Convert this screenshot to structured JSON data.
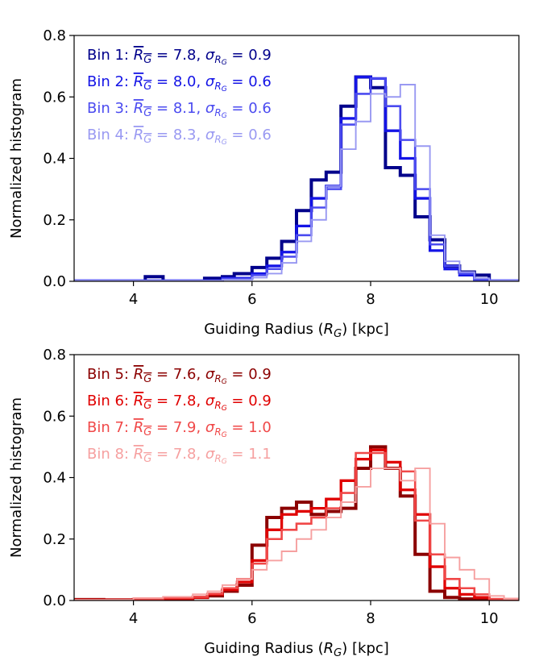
{
  "chart_data": [
    {
      "type": "histogram-step",
      "xlabel": "Guiding Radius (R_G) [kpc]",
      "xlabel_parts": {
        "pre": "Guiding Radius (",
        "sym": "R",
        "sub": "G",
        "post": ") [kpc]"
      },
      "ylabel": "Normalized histogram",
      "xlim": [
        3.0,
        10.5
      ],
      "ylim": [
        0.0,
        0.8
      ],
      "xticks": [
        4,
        6,
        8,
        10
      ],
      "xtick_labels": [
        "4",
        "6",
        "8",
        "10"
      ],
      "yticks": [
        0.0,
        0.2,
        0.4,
        0.6,
        0.8
      ],
      "ytick_labels": [
        "0.0",
        "0.2",
        "0.4",
        "0.6",
        "0.8"
      ],
      "legend_location": "top-left",
      "series": [
        {
          "name": "Bin 1",
          "mean_text": "7.8",
          "sigma_text": "0.9",
          "color": "#00008b",
          "edges": [
            3.0,
            4.2,
            4.5,
            5.2,
            5.5,
            5.7,
            6.0,
            6.25,
            6.5,
            6.75,
            7.0,
            7.25,
            7.5,
            7.75,
            8.0,
            8.25,
            8.5,
            8.75,
            9.0,
            9.25,
            9.5,
            9.75,
            10.0,
            10.25,
            10.5
          ],
          "values": [
            0.0,
            0.015,
            0.0,
            0.01,
            0.015,
            0.025,
            0.045,
            0.075,
            0.13,
            0.23,
            0.33,
            0.355,
            0.57,
            0.665,
            0.63,
            0.37,
            0.345,
            0.21,
            0.135,
            0.05,
            0.03,
            0.02,
            0.0,
            0.0
          ]
        },
        {
          "name": "Bin 2",
          "mean_text": "8.0",
          "sigma_text": "0.6",
          "color": "#1414e6",
          "edges": [
            3.0,
            5.5,
            6.0,
            6.25,
            6.5,
            6.75,
            7.0,
            7.25,
            7.5,
            7.75,
            8.0,
            8.25,
            8.5,
            8.75,
            9.0,
            9.25,
            9.5,
            9.75,
            10.0,
            10.5
          ],
          "values": [
            0.002,
            0.01,
            0.025,
            0.05,
            0.095,
            0.18,
            0.27,
            0.31,
            0.53,
            0.665,
            0.66,
            0.49,
            0.4,
            0.27,
            0.1,
            0.04,
            0.02,
            0.005,
            0.002
          ]
        },
        {
          "name": "Bin 3",
          "mean_text": "8.1",
          "sigma_text": "0.6",
          "color": "#4b4bf0",
          "edges": [
            3.0,
            5.5,
            6.0,
            6.25,
            6.5,
            6.75,
            7.0,
            7.25,
            7.5,
            7.75,
            8.0,
            8.25,
            8.5,
            8.75,
            9.0,
            9.25,
            9.5,
            9.75,
            10.0,
            10.5
          ],
          "values": [
            0.002,
            0.008,
            0.02,
            0.04,
            0.08,
            0.15,
            0.24,
            0.3,
            0.51,
            0.61,
            0.66,
            0.57,
            0.46,
            0.3,
            0.12,
            0.05,
            0.025,
            0.005,
            0.002
          ]
        },
        {
          "name": "Bin 4",
          "mean_text": "8.3",
          "sigma_text": "0.6",
          "color": "#9999f2",
          "edges": [
            3.0,
            5.5,
            6.0,
            6.25,
            6.5,
            6.75,
            7.0,
            7.25,
            7.5,
            7.75,
            8.0,
            8.25,
            8.5,
            8.75,
            9.0,
            9.25,
            9.5,
            9.75,
            10.0,
            10.5
          ],
          "values": [
            0.002,
            0.005,
            0.012,
            0.025,
            0.06,
            0.13,
            0.2,
            0.31,
            0.43,
            0.52,
            0.61,
            0.6,
            0.64,
            0.44,
            0.15,
            0.065,
            0.03,
            0.01,
            0.002
          ]
        }
      ]
    },
    {
      "type": "histogram-step",
      "xlabel": "Guiding Radius (R_G) [kpc]",
      "xlabel_parts": {
        "pre": "Guiding Radius (",
        "sym": "R",
        "sub": "G",
        "post": ") [kpc]"
      },
      "ylabel": "Normalized histogram",
      "xlim": [
        3.0,
        10.5
      ],
      "ylim": [
        0.0,
        0.8
      ],
      "xticks": [
        4,
        6,
        8,
        10
      ],
      "xtick_labels": [
        "4",
        "6",
        "8",
        "10"
      ],
      "yticks": [
        0.0,
        0.2,
        0.4,
        0.6,
        0.8
      ],
      "ytick_labels": [
        "0.0",
        "0.2",
        "0.4",
        "0.6",
        "0.8"
      ],
      "legend_location": "top-left",
      "series": [
        {
          "name": "Bin 5",
          "mean_text": "7.6",
          "sigma_text": "0.9",
          "color": "#8b0000",
          "edges": [
            3.0,
            3.5,
            4.0,
            4.5,
            5.0,
            5.25,
            5.5,
            5.75,
            6.0,
            6.25,
            6.5,
            6.75,
            7.0,
            7.25,
            7.5,
            7.75,
            8.0,
            8.25,
            8.5,
            8.75,
            9.0,
            9.25,
            9.5,
            9.75,
            10.0,
            10.5
          ],
          "values": [
            0.003,
            0.002,
            0.003,
            0.005,
            0.01,
            0.015,
            0.03,
            0.05,
            0.18,
            0.27,
            0.3,
            0.32,
            0.28,
            0.29,
            0.3,
            0.43,
            0.5,
            0.43,
            0.34,
            0.15,
            0.03,
            0.01,
            0.005,
            0.002,
            0.001
          ]
        },
        {
          "name": "Bin 6",
          "mean_text": "7.8",
          "sigma_text": "0.9",
          "color": "#e00000",
          "edges": [
            3.0,
            4.0,
            4.5,
            5.0,
            5.25,
            5.5,
            5.75,
            6.0,
            6.25,
            6.5,
            6.75,
            7.0,
            7.25,
            7.5,
            7.75,
            8.0,
            8.25,
            8.5,
            8.75,
            9.0,
            9.25,
            9.5,
            9.75,
            10.0,
            10.5
          ],
          "values": [
            0.002,
            0.003,
            0.006,
            0.01,
            0.02,
            0.035,
            0.06,
            0.13,
            0.23,
            0.28,
            0.29,
            0.3,
            0.33,
            0.39,
            0.46,
            0.49,
            0.45,
            0.36,
            0.28,
            0.11,
            0.04,
            0.02,
            0.01,
            0.003
          ]
        },
        {
          "name": "Bin 7",
          "mean_text": "7.9",
          "sigma_text": "1.0",
          "color": "#f04848",
          "edges": [
            3.0,
            4.0,
            4.5,
            5.0,
            5.25,
            5.5,
            5.75,
            6.0,
            6.25,
            6.5,
            6.75,
            7.0,
            7.25,
            7.5,
            7.75,
            8.0,
            8.25,
            8.5,
            8.75,
            9.0,
            9.25,
            9.5,
            9.75,
            10.0,
            10.5
          ],
          "values": [
            0.002,
            0.004,
            0.008,
            0.012,
            0.022,
            0.04,
            0.07,
            0.12,
            0.2,
            0.23,
            0.25,
            0.27,
            0.3,
            0.35,
            0.48,
            0.48,
            0.43,
            0.42,
            0.26,
            0.15,
            0.07,
            0.04,
            0.02,
            0.005
          ]
        },
        {
          "name": "Bin 8",
          "mean_text": "7.8",
          "sigma_text": "1.1",
          "color": "#f6a0a0",
          "edges": [
            3.0,
            4.0,
            4.5,
            5.0,
            5.25,
            5.5,
            5.75,
            6.0,
            6.25,
            6.5,
            6.75,
            7.0,
            7.25,
            7.5,
            7.75,
            8.0,
            8.25,
            8.5,
            8.75,
            9.0,
            9.25,
            9.5,
            9.75,
            10.0,
            10.25,
            10.5
          ],
          "values": [
            0.002,
            0.008,
            0.012,
            0.02,
            0.03,
            0.05,
            0.07,
            0.1,
            0.13,
            0.16,
            0.2,
            0.23,
            0.27,
            0.32,
            0.37,
            0.43,
            0.43,
            0.39,
            0.43,
            0.25,
            0.14,
            0.1,
            0.07,
            0.015,
            0.005
          ]
        }
      ]
    }
  ]
}
